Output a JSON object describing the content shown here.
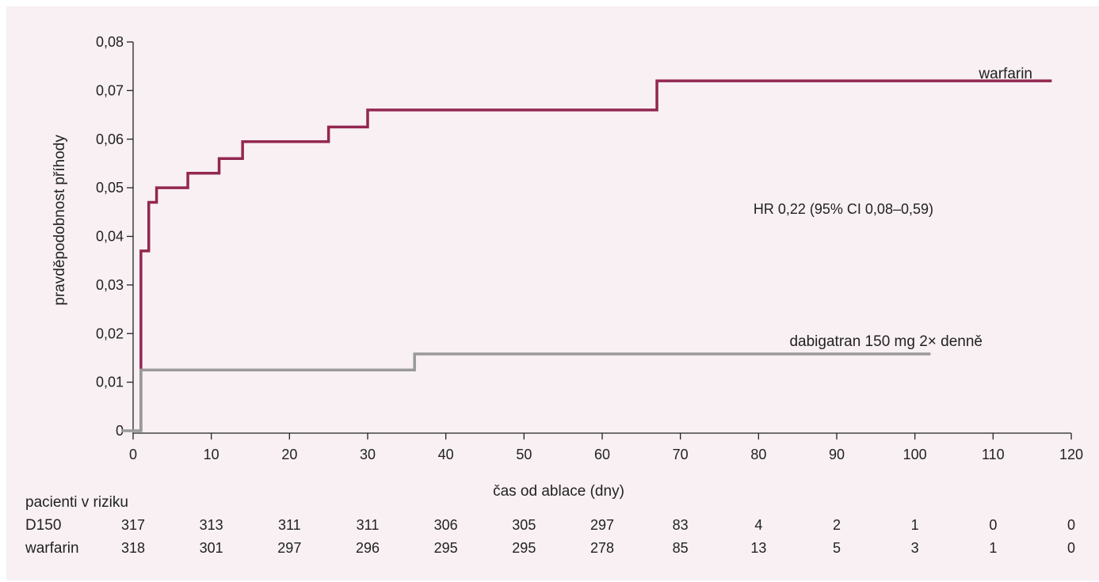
{
  "chart_data": {
    "type": "line",
    "step": true,
    "xlabel": "čas od ablace (dny)",
    "ylabel": "pravděpodobnost příhody",
    "xlim": [
      0,
      120
    ],
    "ylim": [
      0,
      0.08
    ],
    "xticks": [
      "0",
      "10",
      "20",
      "30",
      "40",
      "50",
      "60",
      "70",
      "80",
      "90",
      "100",
      "110",
      "120"
    ],
    "yticks": [
      "0",
      "0,01",
      "0,02",
      "0,03",
      "0,04",
      "0,05",
      "0,06",
      "0,07",
      "0,08"
    ],
    "annotation": "HR 0,22 (95% CI 0,08–0,59)",
    "series": [
      {
        "name": "warfarin",
        "color": "#93274f",
        "x": [
          1,
          1,
          2,
          3,
          7,
          11,
          14,
          25,
          30,
          67,
          117.5
        ],
        "y": [
          0.0,
          0.037,
          0.047,
          0.05,
          0.053,
          0.056,
          0.0595,
          0.0625,
          0.066,
          0.072,
          0.072
        ]
      },
      {
        "name": "dabigatran 150 mg 2× denně",
        "color": "#9a9a9a",
        "x": [
          -1.5,
          1,
          36,
          102
        ],
        "y": [
          0.0,
          0.0125,
          0.0158,
          0.0158
        ]
      }
    ],
    "risk_table": {
      "title": "pacienti v riziku",
      "rows": [
        {
          "label": "D150",
          "values": [
            "317",
            "313",
            "311",
            "311",
            "306",
            "305",
            "297",
            "83",
            "4",
            "2",
            "1",
            "0",
            "0"
          ]
        },
        {
          "label": "warfarin",
          "values": [
            "318",
            "301",
            "297",
            "296",
            "295",
            "295",
            "278",
            "85",
            "13",
            "5",
            "3",
            "1",
            "0"
          ]
        }
      ]
    }
  }
}
